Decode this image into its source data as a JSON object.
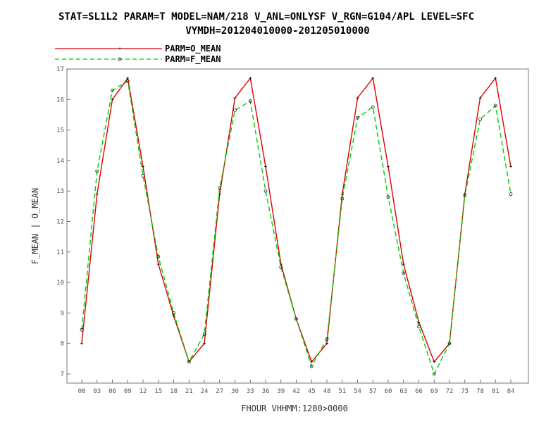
{
  "chart_data": {
    "type": "line",
    "title": "STAT=SL1L2 PARAM=T MODEL=NAM/218 V_ANL=ONLYSF V_RGN=G104/APL LEVEL=SFC",
    "subtitle": "VYMDH=201204010000-201205010000",
    "xlabel": "FHOUR VHHMM:1200>0000",
    "ylabel": "F_MEAN | O_MEAN",
    "ylim": [
      6.7,
      17.0
    ],
    "yticks": [
      "7",
      "8",
      "9",
      "10",
      "11",
      "12",
      "13",
      "14",
      "15",
      "16",
      "17"
    ],
    "categories": [
      "00",
      "03",
      "06",
      "09",
      "12",
      "15",
      "18",
      "21",
      "24",
      "27",
      "30",
      "33",
      "36",
      "39",
      "42",
      "45",
      "48",
      "51",
      "54",
      "57",
      "60",
      "63",
      "66",
      "69",
      "72",
      "75",
      "78",
      "81",
      "84"
    ],
    "legend_position": "top-left",
    "grid": false,
    "series": [
      {
        "name": "PARM=O_MEAN",
        "color": "#dd0000",
        "style": "solid",
        "marker": "plus",
        "values": [
          8.0,
          12.9,
          16.0,
          16.7,
          13.8,
          10.6,
          8.9,
          7.4,
          8.0,
          12.9,
          16.05,
          16.7,
          13.8,
          10.6,
          8.8,
          7.4,
          8.0,
          12.9,
          16.05,
          16.7,
          13.8,
          10.6,
          8.7,
          7.4,
          8.0,
          12.9,
          16.05,
          16.7,
          13.8
        ]
      },
      {
        "name": "PARM=F_MEAN",
        "color": "#00cc00",
        "style": "dashed",
        "marker": "circle",
        "values": [
          8.45,
          13.65,
          16.3,
          16.6,
          13.5,
          10.85,
          9.0,
          7.4,
          8.3,
          13.1,
          15.65,
          15.95,
          13.0,
          10.5,
          8.8,
          7.25,
          8.15,
          12.75,
          15.4,
          15.75,
          12.8,
          10.3,
          8.55,
          7.0,
          8.0,
          12.85,
          15.35,
          15.8,
          12.9
        ]
      }
    ]
  }
}
